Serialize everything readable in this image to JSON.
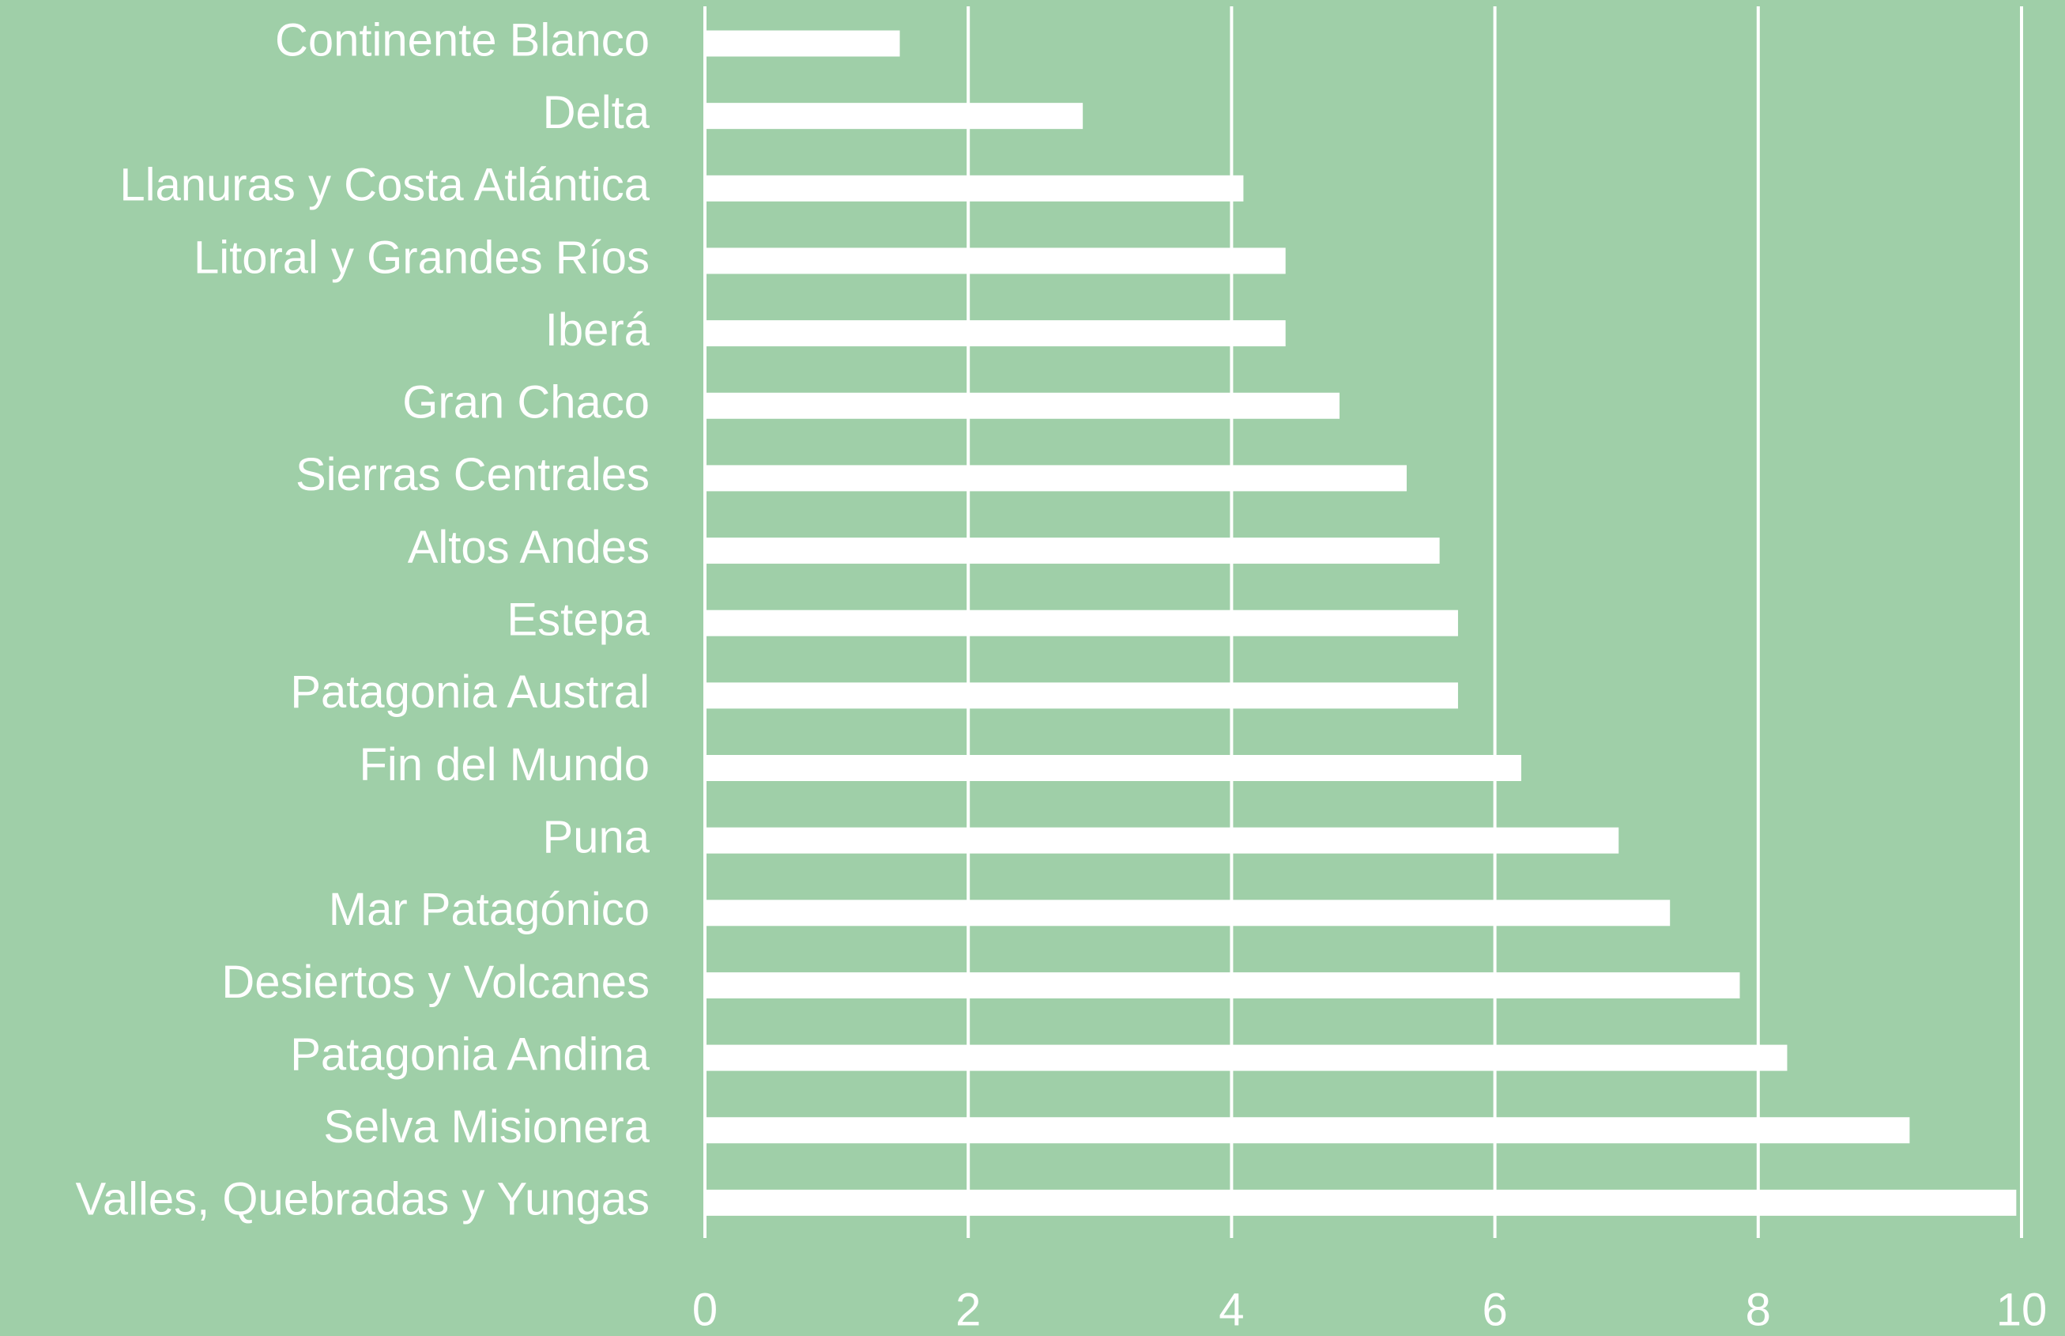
{
  "chart_data": {
    "type": "bar",
    "orientation": "horizontal",
    "categories": [
      "Continente Blanco",
      "Delta",
      "Llanuras y Costa Atlántica",
      "Litoral y Grandes Ríos",
      "Iberá",
      "Gran Chaco",
      "Sierras Centrales",
      "Altos Andes",
      "Estepa",
      "Patagonia Austral",
      "Fin del Mundo",
      "Puna",
      "Mar Patagónico",
      "Desiertos y Volcanes",
      "Patagonia Andina",
      "Selva Misionera",
      "Valles, Quebradas y Yungas"
    ],
    "values": [
      1.48,
      2.87,
      4.09,
      4.41,
      4.41,
      4.82,
      5.33,
      5.58,
      5.72,
      5.72,
      6.2,
      6.94,
      7.33,
      7.86,
      8.22,
      9.15,
      9.96
    ],
    "color": "#ffffff",
    "background": "#9fcfa8",
    "xlim": [
      0,
      10
    ],
    "xticks": [
      0,
      2,
      4,
      6,
      8,
      10
    ],
    "grid": true
  }
}
